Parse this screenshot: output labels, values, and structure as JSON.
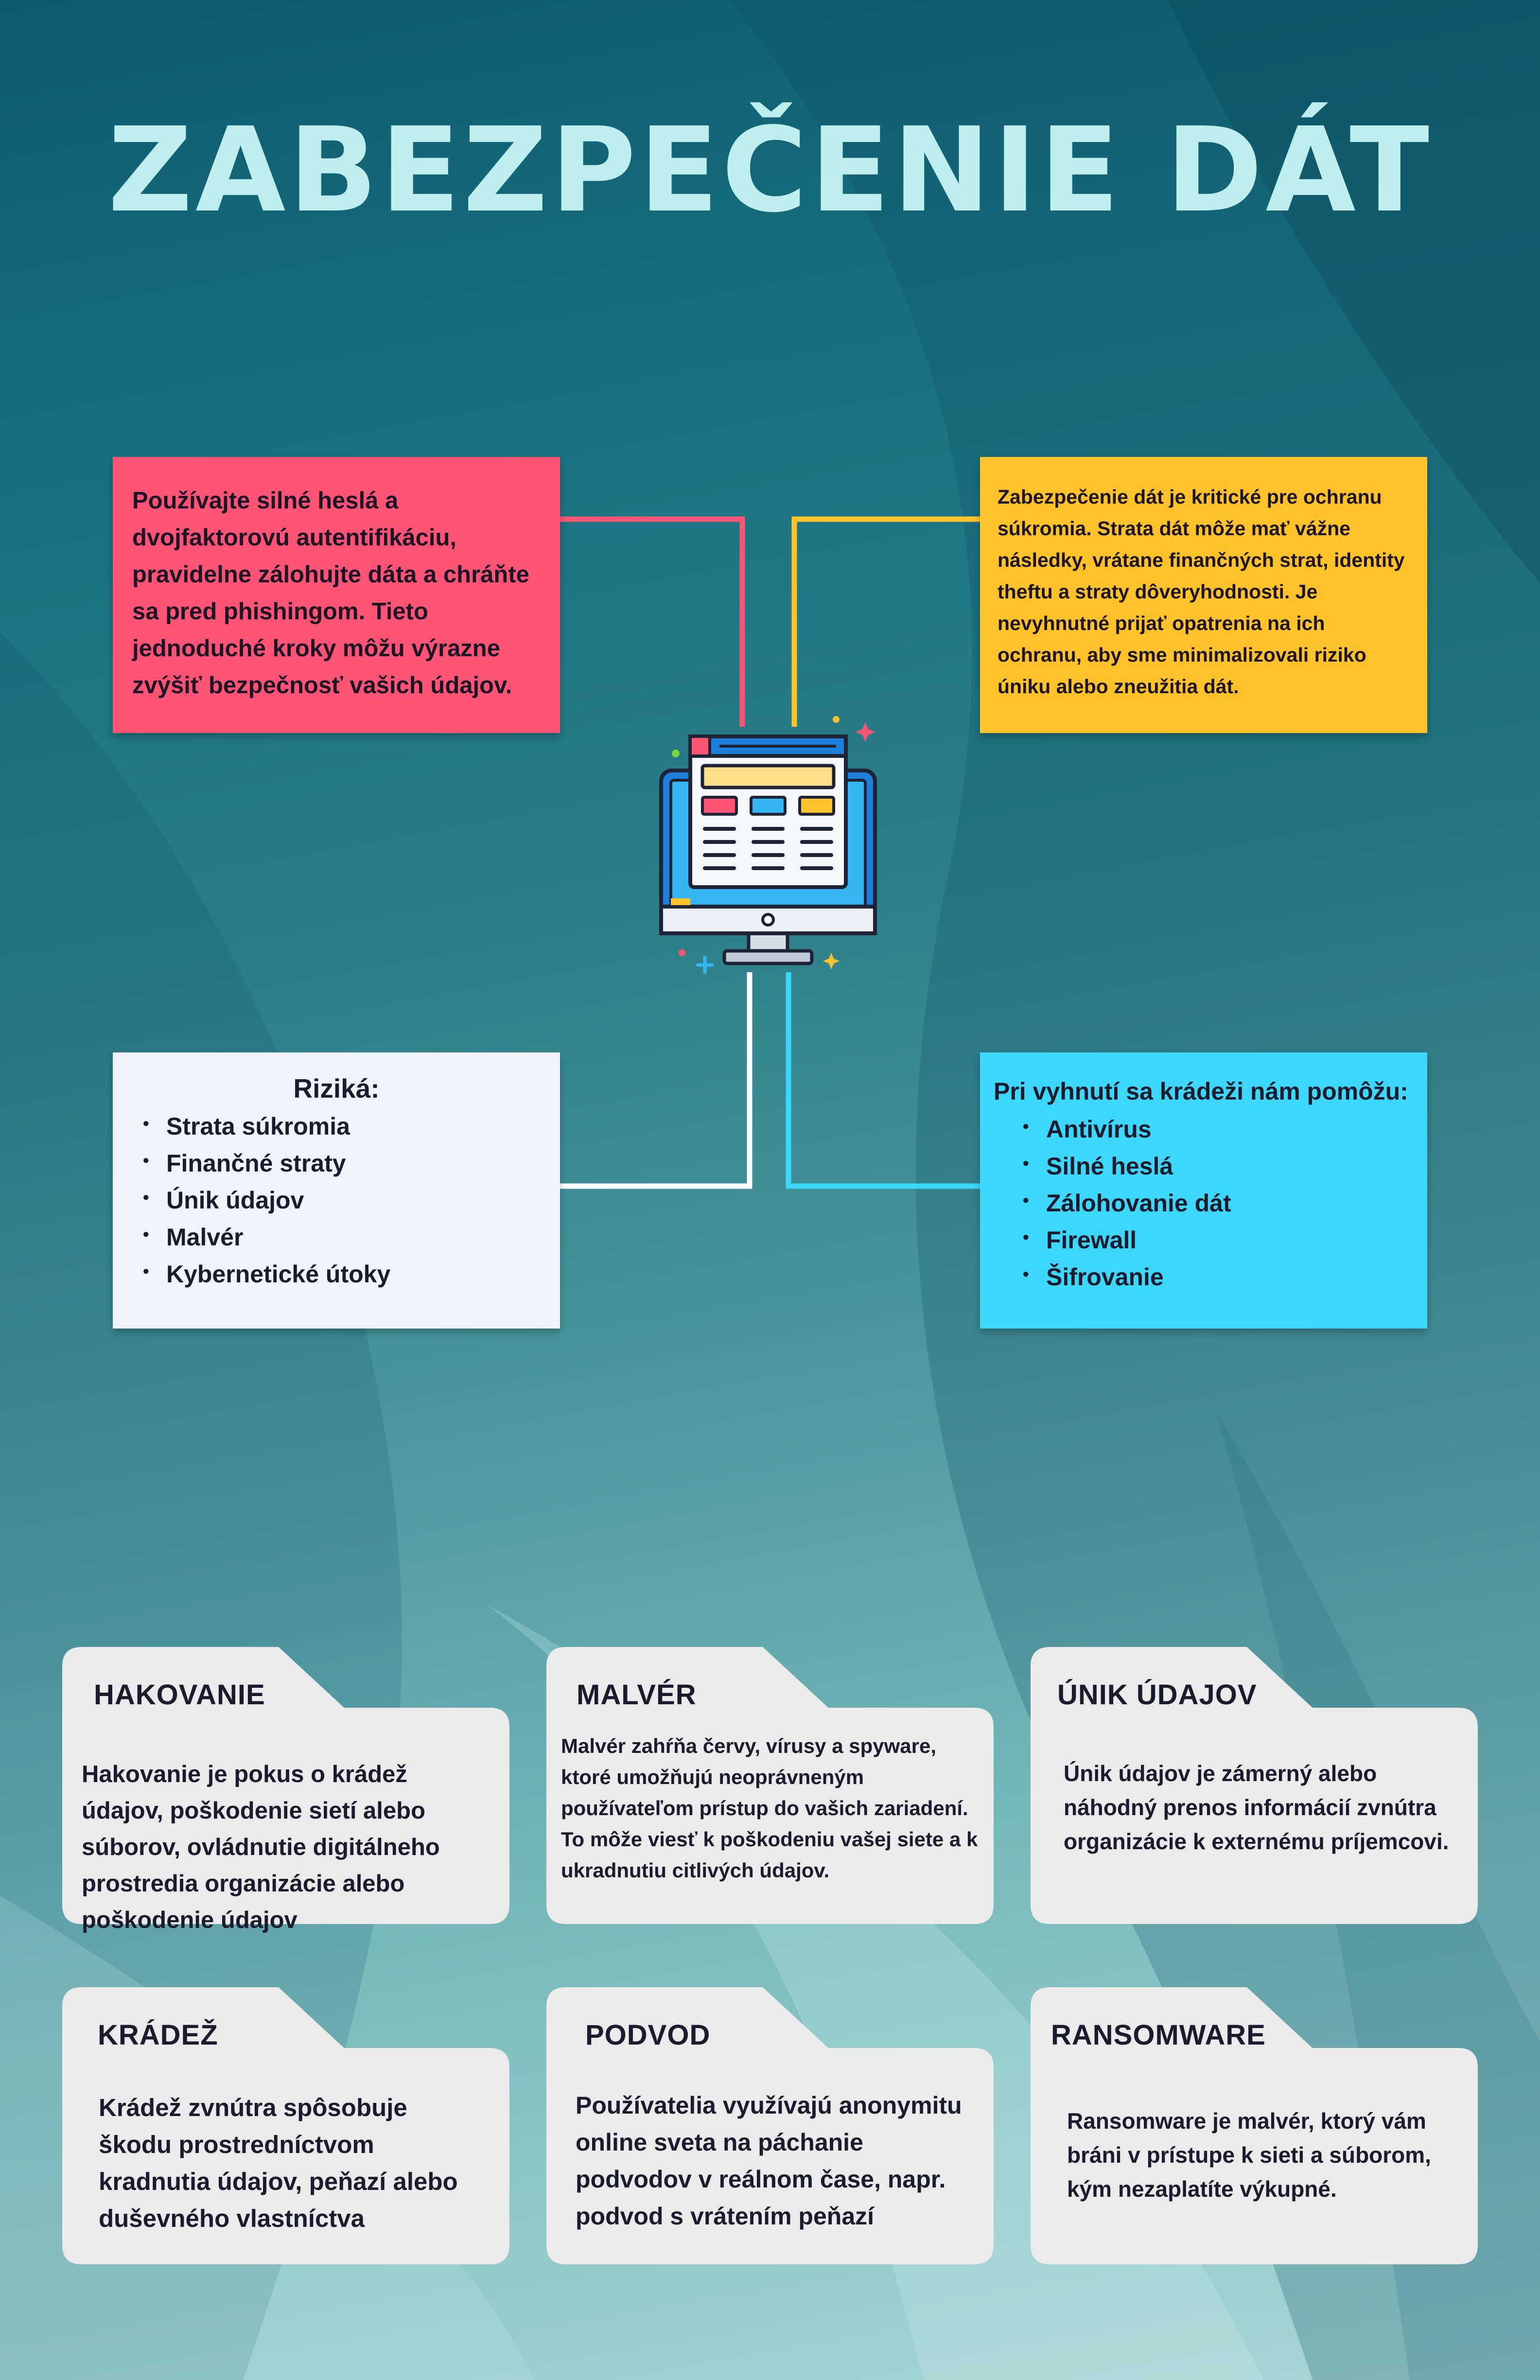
{
  "title": "ZABEZPEČENIE DÁT",
  "colors": {
    "title": "#bfeeee",
    "pink": "#fd5476",
    "yellow": "#fec22b",
    "white_box": "#eef3fc",
    "cyan": "#3cd7fb",
    "card": "#ebebeb",
    "text": "#1b1b2e"
  },
  "boxes": {
    "tips": {
      "text": "Používajte silné heslá a dvojfaktorovú autentifikáciu, pravidelne zálohujte dáta a chráňte sa pred phishingom. Tieto jednoduché kroky môžu výrazne zvýšiť bezpečnosť vašich údajov."
    },
    "importance": {
      "text": "Zabezpečenie dát je kritické pre ochranu súkromia. Strata dát môže mať vážne následky, vrátane finančných strat, identity theftu a straty dôveryhodnosti. Je nevyhnutné prijať opatrenia na ich ochranu, aby sme minimalizovali riziko úniku alebo zneužitia dát."
    },
    "risks": {
      "title": "Riziká:",
      "items": [
        "Strata súkromia",
        "Finančné straty",
        "Únik údajov",
        "Malvér",
        "Kybernetické útoky"
      ]
    },
    "prevention": {
      "title": "Pri vyhnutí sa krádeži nám pomôžu:",
      "items": [
        "Antivírus",
        "Silné heslá",
        "Zálohovanie dát",
        "Firewall",
        "Šifrovanie"
      ]
    }
  },
  "center_icon": "computer-monitor-icon",
  "cards": [
    {
      "title": "HAKOVANIE",
      "text": "Hakovanie je pokus o krádež údajov, poškodenie sietí alebo súborov, ovládnutie digitálneho prostredia organizácie alebo poškodenie údajov"
    },
    {
      "title": "MALVÉR",
      "text": "Malvér zahŕňa červy, vírusy a spyware, ktoré umožňujú neoprávneným používateľom prístup do vašich zariadení. To môže viesť k poškodeniu vašej siete a k ukradnutiu citlivých údajov."
    },
    {
      "title": "ÚNIK ÚDAJOV",
      "text": "Únik údajov je zámerný alebo náhodný prenos informácií zvnútra organizácie k externému príjemcovi."
    },
    {
      "title": "KRÁDEŽ",
      "text": "Krádež zvnútra spôsobuje škodu prostredníctvom kradnutia údajov, peňazí alebo duševného vlastníctva"
    },
    {
      "title": "PODVOD",
      "text": "Používatelia využívajú anonymitu online sveta na páchanie podvodov v reálnom čase, napr. podvod s vrátením peňazí"
    },
    {
      "title": "RANSOMWARE",
      "text": "Ransomware je malvér, ktorý vám bráni v prístupe k sieti a súborom, kým nezaplatíte výkupné."
    }
  ]
}
